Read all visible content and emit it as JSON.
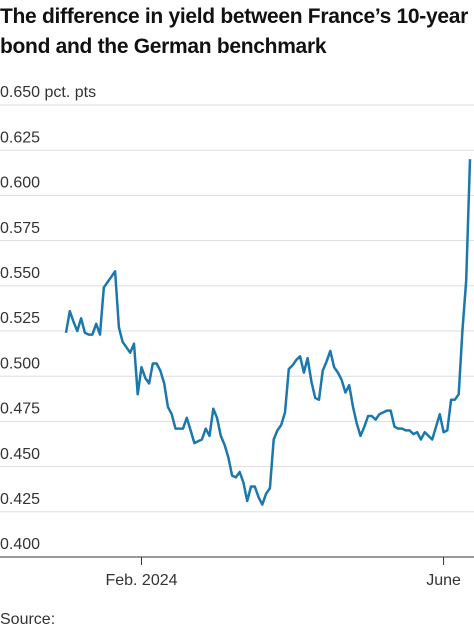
{
  "chart_data": {
    "type": "line",
    "title": "The difference in yield between France’s 10-year bond and the German benchmark",
    "source": "Source:",
    "color": "#1a78ad",
    "grid": true,
    "values": [
      0.524,
      0.536,
      0.53,
      0.525,
      0.532,
      0.524,
      0.523,
      0.523,
      0.529,
      0.523,
      0.549,
      0.552,
      0.555,
      0.558,
      0.527,
      0.519,
      0.516,
      0.513,
      0.518,
      0.49,
      0.505,
      0.499,
      0.496,
      0.507,
      0.507,
      0.503,
      0.496,
      0.483,
      0.479,
      0.471,
      0.471,
      0.471,
      0.477,
      0.47,
      0.463,
      0.464,
      0.465,
      0.471,
      0.467,
      0.482,
      0.477,
      0.467,
      0.462,
      0.455,
      0.445,
      0.444,
      0.447,
      0.441,
      0.431,
      0.439,
      0.439,
      0.433,
      0.429,
      0.435,
      0.438,
      0.465,
      0.47,
      0.473,
      0.48,
      0.504,
      0.506,
      0.509,
      0.511,
      0.502,
      0.51,
      0.497,
      0.488,
      0.487,
      0.503,
      0.508,
      0.514,
      0.505,
      0.502,
      0.498,
      0.491,
      0.495,
      0.483,
      0.474,
      0.467,
      0.472,
      0.478,
      0.478,
      0.476,
      0.479,
      0.48,
      0.481,
      0.481,
      0.472,
      0.471,
      0.471,
      0.47,
      0.47,
      0.468,
      0.469,
      0.465,
      0.469,
      0.467,
      0.465,
      0.472,
      0.479,
      0.469,
      0.47,
      0.487,
      0.487,
      0.49,
      0.525,
      0.553,
      0.62
    ],
    "xlim": [
      0,
      107
    ],
    "xticks": [
      {
        "value": 20,
        "label": "Feb. 2024"
      },
      {
        "value": 100,
        "label": "June"
      }
    ],
    "ylim": [
      0.4,
      0.65
    ],
    "yticks": [
      {
        "value": 0.4,
        "label": "0.400"
      },
      {
        "value": 0.425,
        "label": "0.425"
      },
      {
        "value": 0.45,
        "label": "0.450"
      },
      {
        "value": 0.475,
        "label": "0.475"
      },
      {
        "value": 0.5,
        "label": "0.500"
      },
      {
        "value": 0.525,
        "label": "0.525"
      },
      {
        "value": 0.55,
        "label": "0.550"
      },
      {
        "value": 0.575,
        "label": "0.575"
      },
      {
        "value": 0.6,
        "label": "0.600"
      },
      {
        "value": 0.625,
        "label": "0.625"
      },
      {
        "value": 0.65,
        "label": "0.650 pct. pts"
      }
    ]
  }
}
